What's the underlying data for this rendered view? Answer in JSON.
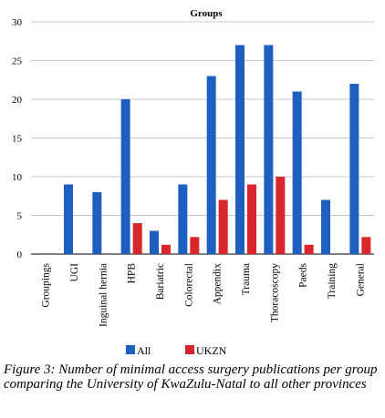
{
  "chart_data": {
    "type": "bar",
    "title": "Groups",
    "categories": [
      "Groupings",
      "UGI",
      "Inguinal hernia",
      "HPB",
      "Bariatric",
      "Colorectal",
      "Appendix",
      "Trauma",
      "Thoracoscopy",
      "Paeds",
      "Training",
      "General"
    ],
    "series": [
      {
        "name": "All",
        "color": "#1f5fbf",
        "values": [
          0,
          9,
          8,
          20,
          3,
          9,
          23,
          27,
          27,
          21,
          7,
          22
        ]
      },
      {
        "name": "UKZN",
        "color": "#d9262c",
        "values": [
          0,
          0,
          0,
          4,
          1.2,
          2.2,
          7,
          9,
          10,
          1.2,
          0,
          2.2
        ]
      }
    ],
    "ylim": [
      0,
      30
    ],
    "yticks": [
      0,
      5,
      10,
      15,
      20,
      25,
      30
    ],
    "grid": true,
    "legend": "bottom"
  },
  "caption": "Figure 3: Number of minimal access surgery publications per group comparing the University of KwaZulu-Natal to all other provinces"
}
